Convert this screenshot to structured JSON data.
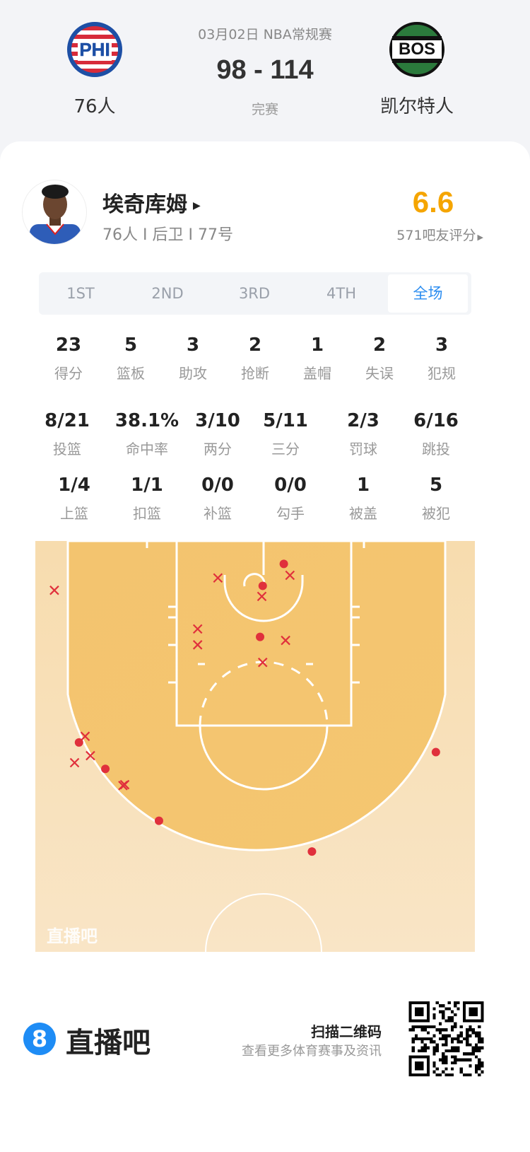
{
  "match": {
    "date_league": "03月02日 NBA常规赛",
    "score": "98 - 114",
    "status": "完赛",
    "home": {
      "name": "76人",
      "abbr": "PHI"
    },
    "away": {
      "name": "凯尔特人",
      "abbr": "BOS"
    }
  },
  "player": {
    "name": "埃奇库姆",
    "info": "76人 I 后卫 I 77号",
    "rating": "6.6",
    "rating_label": "571吧友评分",
    "rating_color": "#f5a500"
  },
  "tabs": [
    {
      "label": "1ST"
    },
    {
      "label": "2ND"
    },
    {
      "label": "3RD"
    },
    {
      "label": "4TH"
    },
    {
      "label": "全场",
      "active": true
    }
  ],
  "stats_row1": [
    {
      "v": "23",
      "l": "得分"
    },
    {
      "v": "5",
      "l": "篮板"
    },
    {
      "v": "3",
      "l": "助攻"
    },
    {
      "v": "2",
      "l": "抢断"
    },
    {
      "v": "1",
      "l": "盖帽"
    },
    {
      "v": "2",
      "l": "失误"
    },
    {
      "v": "3",
      "l": "犯规"
    }
  ],
  "stats_row2": [
    {
      "v": "8/21",
      "l": "投篮"
    },
    {
      "v": "38.1%",
      "l": "命中率"
    },
    {
      "v": "3/10",
      "l": "两分"
    },
    {
      "v": "5/11",
      "l": "三分"
    },
    {
      "v": "2/3",
      "l": "罚球"
    },
    {
      "v": "6/16",
      "l": "跳投"
    }
  ],
  "stats_row3": [
    {
      "v": "1/4",
      "l": "上篮"
    },
    {
      "v": "1/1",
      "l": "扣篮"
    },
    {
      "v": "0/0",
      "l": "补篮"
    },
    {
      "v": "0/0",
      "l": "勾手"
    },
    {
      "v": "1",
      "l": "被盖"
    },
    {
      "v": "5",
      "l": "被犯"
    }
  ],
  "shot_chart": {
    "watermark": "直播吧",
    "made_color": "#e0303c",
    "made": [
      [
        2.3,
        2.6
      ],
      [
        -0.1,
        5.1
      ],
      [
        -0.4,
        10.9
      ],
      [
        -21.0,
        22.9
      ],
      [
        -18.0,
        25.9
      ],
      [
        -11.9,
        31.8
      ],
      [
        5.5,
        35.3
      ],
      [
        19.6,
        24.0
      ]
    ],
    "missed": [
      [
        -23.8,
        5.6
      ],
      [
        -5.2,
        4.2
      ],
      [
        3.0,
        3.9
      ],
      [
        -0.2,
        6.3
      ],
      [
        -7.5,
        10.0
      ],
      [
        -7.5,
        11.8
      ],
      [
        2.5,
        11.3
      ],
      [
        -0.1,
        13.8
      ],
      [
        -20.3,
        22.2
      ],
      [
        -21.5,
        25.2
      ],
      [
        -19.7,
        24.4
      ],
      [
        -16.0,
        27.8
      ],
      [
        -15.8,
        27.7
      ]
    ]
  },
  "footer": {
    "brand": "直播吧",
    "brand_icon": "8",
    "scan": "扫描二维码",
    "scan_sub": "查看更多体育赛事及资讯"
  }
}
